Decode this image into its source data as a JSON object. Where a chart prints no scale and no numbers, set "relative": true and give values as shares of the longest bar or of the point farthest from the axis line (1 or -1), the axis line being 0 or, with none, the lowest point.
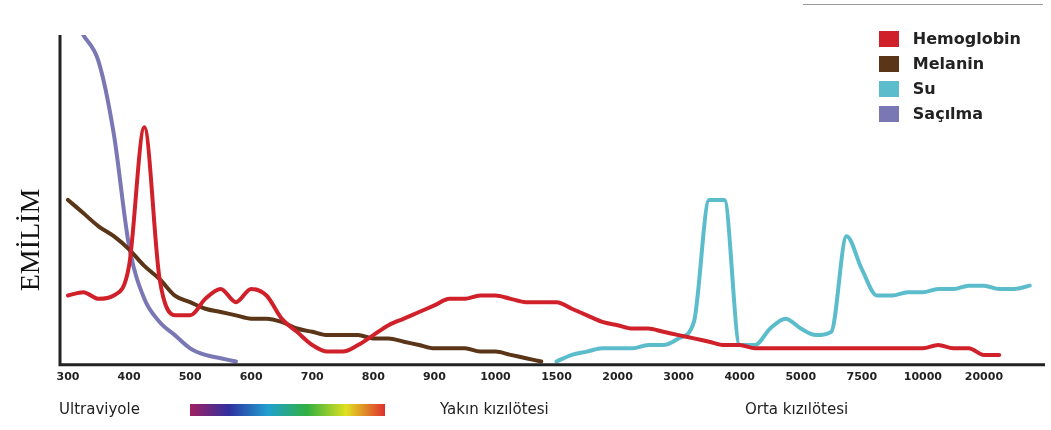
{
  "chart_data": {
    "type": "line",
    "ylabel": "EMİLİM",
    "relative": true,
    "legend": "top right",
    "grid": false,
    "marker": "none",
    "line_style": "solid",
    "categories": [
      "300",
      null,
      null,
      null,
      "400",
      null,
      null,
      null,
      "500",
      null,
      null,
      null,
      "600",
      null,
      null,
      null,
      "700",
      null,
      null,
      null,
      "800",
      null,
      null,
      null,
      "900",
      null,
      null,
      null,
      "1000",
      null,
      null,
      null,
      "1500",
      null,
      null,
      null,
      "2000",
      null,
      null,
      null,
      "3000",
      null,
      null,
      null,
      "4000",
      null,
      null,
      null,
      "5000",
      null,
      null,
      null,
      "7500",
      null,
      null,
      null,
      "10000",
      null,
      null,
      null,
      "20000",
      null,
      null,
      null,
      null
    ],
    "series": [
      {
        "name": "Hemoglobin",
        "color": "#d0202a",
        "values": [
          0.21,
          0.22,
          0.2,
          0.21,
          0.3,
          0.72,
          0.26,
          0.15,
          0.15,
          0.2,
          0.23,
          0.19,
          0.23,
          0.21,
          0.14,
          0.1,
          0.06,
          0.04,
          0.04,
          0.06,
          0.09,
          0.12,
          0.14,
          0.16,
          0.18,
          0.2,
          0.2,
          0.21,
          0.21,
          0.2,
          0.19,
          0.19,
          0.19,
          0.17,
          0.15,
          0.13,
          0.12,
          0.11,
          0.11,
          0.1,
          0.09,
          0.08,
          0.07,
          0.06,
          0.06,
          0.05,
          0.05,
          0.05,
          0.05,
          0.05,
          0.05,
          0.05,
          0.05,
          0.05,
          0.05,
          0.05,
          0.05,
          0.06,
          0.05,
          0.05,
          0.03,
          0.03,
          null,
          null,
          null
        ]
      },
      {
        "name": "Melanin",
        "color": "#5a3518",
        "values": [
          0.5,
          0.46,
          0.42,
          0.39,
          0.35,
          0.3,
          0.26,
          0.21,
          0.19,
          0.17,
          0.16,
          0.15,
          0.14,
          0.14,
          0.13,
          0.11,
          0.1,
          0.09,
          0.09,
          0.09,
          0.08,
          0.08,
          0.07,
          0.06,
          0.05,
          0.05,
          0.05,
          0.04,
          0.04,
          0.03,
          0.02,
          0.01,
          null,
          null,
          null,
          null,
          null,
          null,
          null,
          null,
          null,
          null,
          null,
          null,
          null,
          null,
          null,
          null,
          null,
          null,
          null,
          null,
          null,
          null,
          null,
          null,
          null,
          null,
          null,
          null,
          null,
          null,
          null,
          null,
          null
        ]
      },
      {
        "name": "Su",
        "color": "#5bbccc",
        "values": [
          null,
          null,
          null,
          null,
          null,
          null,
          null,
          null,
          null,
          null,
          null,
          null,
          null,
          null,
          null,
          null,
          null,
          null,
          null,
          null,
          null,
          null,
          null,
          null,
          null,
          null,
          null,
          null,
          null,
          null,
          null,
          null,
          0.01,
          0.03,
          0.04,
          0.05,
          0.05,
          0.05,
          0.06,
          0.06,
          0.08,
          0.13,
          0.5,
          0.5,
          0.06,
          0.06,
          0.11,
          0.14,
          0.11,
          0.09,
          0.1,
          0.39,
          0.29,
          0.21,
          0.21,
          0.22,
          0.22,
          0.23,
          0.23,
          0.24,
          0.24,
          0.23,
          0.23,
          0.24,
          null
        ]
      },
      {
        "name": "Saçılma",
        "color": "#7a78b4",
        "values": [
          null,
          1,
          0.92,
          0.7,
          0.36,
          0.2,
          0.13,
          0.09,
          0.05,
          0.03,
          0.02,
          0.01,
          null,
          null,
          null,
          null,
          null,
          null,
          null,
          null,
          null,
          null,
          null,
          null,
          null,
          null,
          null,
          null,
          null,
          null,
          null,
          null,
          null,
          null,
          null,
          null,
          null,
          null,
          null,
          null,
          null,
          null,
          null,
          null,
          null,
          null,
          null,
          null,
          null,
          null,
          null,
          null,
          null,
          null,
          null,
          null,
          null,
          null,
          null,
          null,
          null,
          null,
          null,
          null,
          null
        ]
      }
    ],
    "annotations": [
      "Ultraviyole",
      "Yakın kızılötesi",
      "Orta kızılötesi"
    ]
  }
}
